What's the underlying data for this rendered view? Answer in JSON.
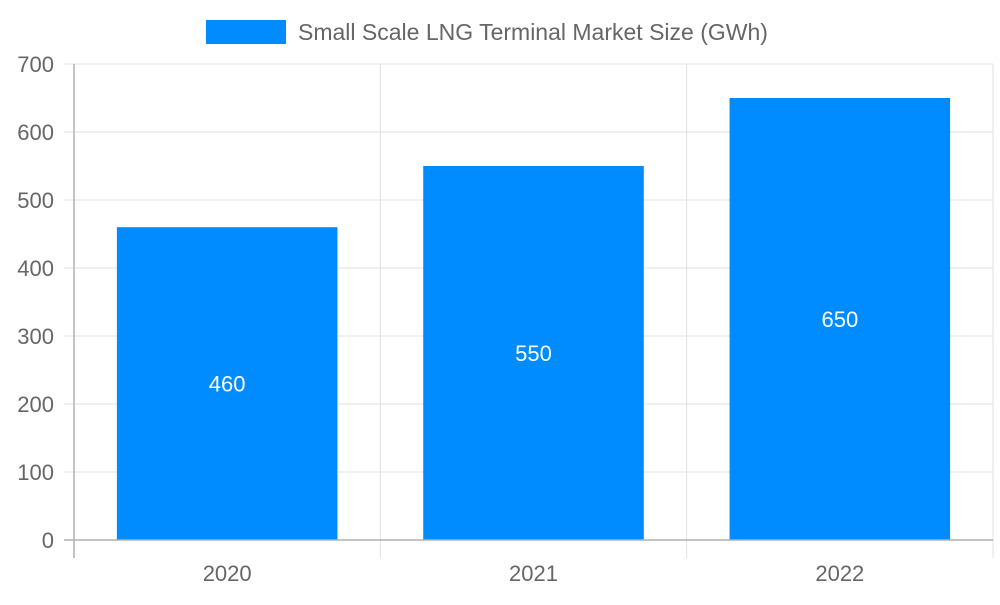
{
  "chart_data": {
    "type": "bar",
    "title": "",
    "xlabel": "",
    "ylabel": "",
    "categories": [
      "2020",
      "2021",
      "2022"
    ],
    "series": [
      {
        "name": "Small Scale LNG Terminal Market Size (GWh)",
        "values": [
          460,
          550,
          650
        ],
        "color": "#008cff"
      }
    ],
    "data_labels": [
      "460",
      "550",
      "650"
    ],
    "ylim": [
      0,
      700
    ],
    "yticks": [
      "0",
      "100",
      "200",
      "300",
      "400",
      "500",
      "600",
      "700"
    ],
    "grid": true,
    "legend_position": "top"
  }
}
